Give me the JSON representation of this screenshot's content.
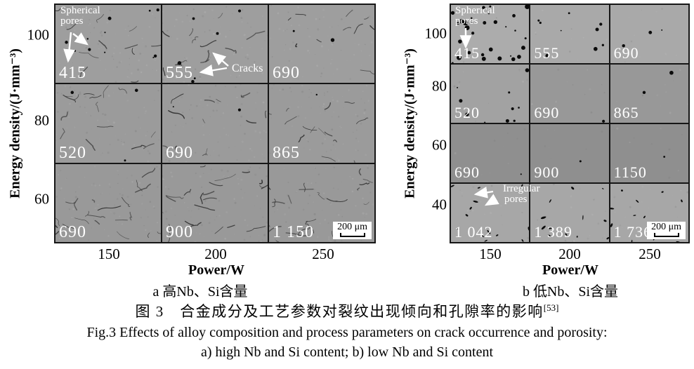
{
  "colors": {
    "background": "#ffffff",
    "crack": "#2e2e2e",
    "pore": "#0b0b0b",
    "grid_line": "#161616",
    "cell_label": "#ffffff"
  },
  "panels": [
    {
      "key": "a",
      "ylabel": "Energy density/(J·mm⁻³)",
      "yticks": [
        "100",
        "80",
        "60"
      ],
      "xticks": [
        "150",
        "200",
        "250"
      ],
      "xlabel": "Power/W",
      "caption": "a 高Nb、Si含量",
      "scale_bar": "200 μm",
      "annotations": {
        "spherical_pores": "Spherical\npores",
        "cracks": "Cracks"
      },
      "row_bases": [
        "#9e9e9e",
        "#9b9b9b",
        "#999999"
      ],
      "rows": [
        [
          {
            "v": "415",
            "cracks": 11,
            "dots": 11
          },
          {
            "v": "555",
            "cracks": 12,
            "dots": 8
          },
          {
            "v": "690",
            "cracks": 10,
            "dots": 2
          }
        ],
        [
          {
            "v": "520",
            "cracks": 15,
            "dots": 3
          },
          {
            "v": "690",
            "cracks": 13,
            "dots": 2
          },
          {
            "v": "865",
            "cracks": 14,
            "dots": 1
          }
        ],
        [
          {
            "v": "690",
            "cracks": 22,
            "dots": 0
          },
          {
            "v": "900",
            "cracks": 22,
            "dots": 0
          },
          {
            "v": "1 150",
            "cracks": 24,
            "dots": 0,
            "scalebar": true
          }
        ]
      ]
    },
    {
      "key": "b",
      "ylabel": "Energy density/(J·mm⁻³)",
      "yticks": [
        "100",
        "80",
        "60",
        "40"
      ],
      "xticks": [
        "150",
        "200",
        "250"
      ],
      "xlabel": "Power/W",
      "caption": "b 低Nb、Si含量",
      "scale_bar": "200 μm",
      "annotations": {
        "spherical_pores": "Spherical\npores",
        "irregular_pores": "Irregular\npores"
      },
      "row_bases": [
        "#a9a9a9",
        "#989898",
        "#8f8f8f",
        "#a7a7a7"
      ],
      "rows": [
        [
          {
            "v": "415",
            "dots": 30,
            "base": "#acacac"
          },
          {
            "v": "555",
            "dots": 9
          },
          {
            "v": "690",
            "dots": 3
          }
        ],
        [
          {
            "v": "520",
            "dots": 10,
            "base": "#a2a2a2"
          },
          {
            "v": "690",
            "dots": 1
          },
          {
            "v": "865",
            "dots": 2
          }
        ],
        [
          {
            "v": "690",
            "dots": 1
          },
          {
            "v": "900",
            "dots": 1
          },
          {
            "v": "1150",
            "dots": 1
          }
        ],
        [
          {
            "v": "1 042",
            "specks": 13
          },
          {
            "v": "1 389",
            "specks": 12
          },
          {
            "v": "1 736",
            "specks": 12,
            "scalebar": true
          }
        ]
      ]
    }
  ],
  "figure_caption": {
    "zh": "图 3　合金成分及工艺参数对裂纹出现倾向和孔隙率的影响",
    "zh_ref": "[53]",
    "en_line1": "Fig.3 Effects of alloy composition and process parameters on crack occurrence and porosity:",
    "en_line2": "a) high Nb and Si content; b) low Nb and Si content"
  }
}
